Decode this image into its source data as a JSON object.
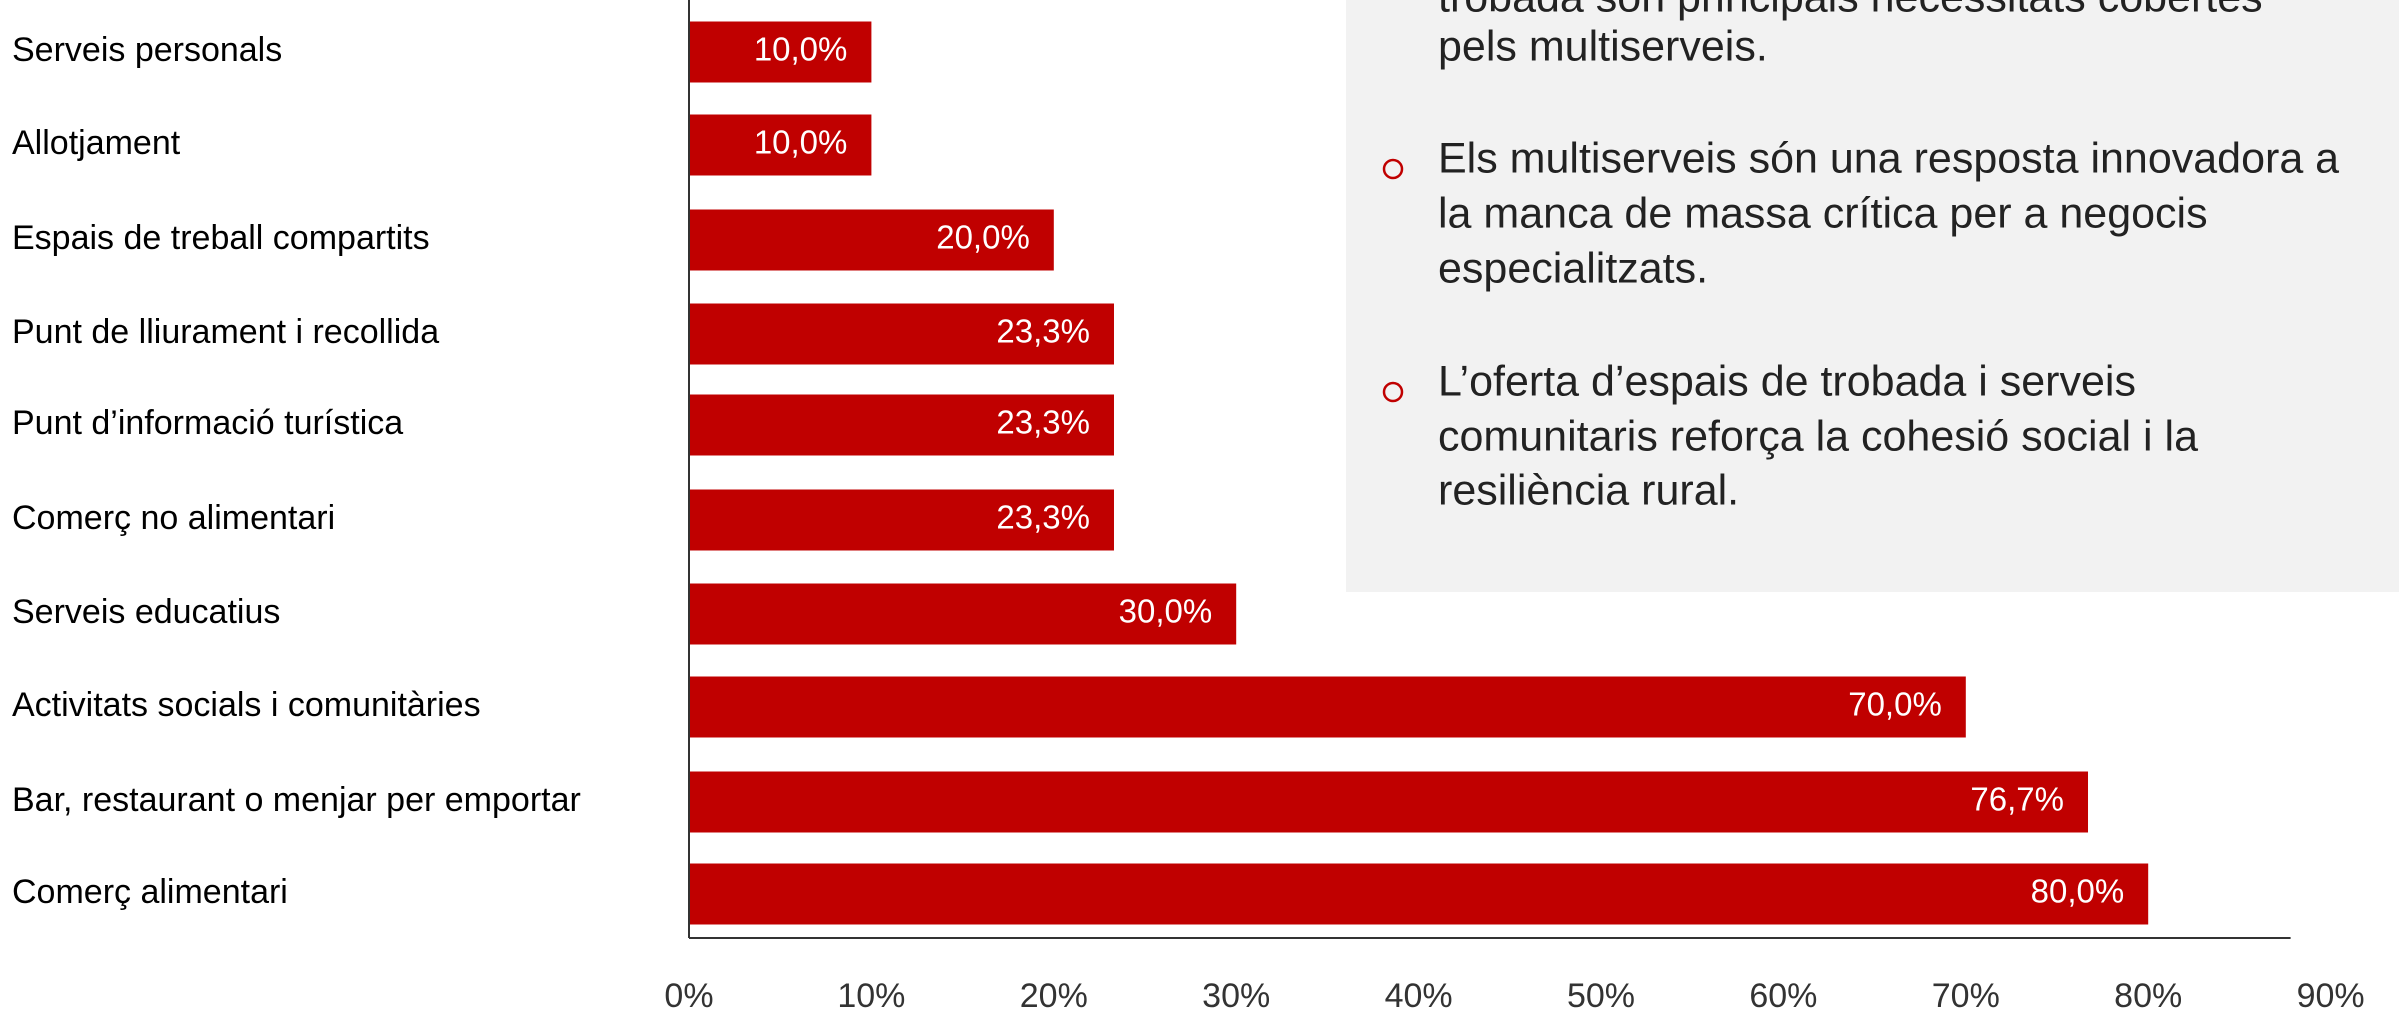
{
  "chart_data": {
    "type": "bar",
    "orientation": "horizontal",
    "categories": [
      "Serveis personals",
      "Allotjament",
      "Espais de treball compartits",
      "Punt de lliurament i recollida",
      "Punt d’informació turística",
      "Comerç no alimentari",
      "Serveis educatius",
      "Activitats socials i comunitàries",
      "Bar, restaurant o menjar per emportar",
      "Comerç alimentari"
    ],
    "values": [
      10.0,
      10.0,
      20.0,
      23.3,
      23.3,
      23.3,
      30.0,
      70.0,
      76.7,
      80.0
    ],
    "value_labels": [
      "10,0%",
      "10,0%",
      "20,0%",
      "23,3%",
      "23,3%",
      "23,3%",
      "30,0%",
      "70,0%",
      "76,7%",
      "80,0%"
    ],
    "color": "#c00000",
    "xlim": [
      0,
      90
    ],
    "xticks": [
      {
        "value": 0,
        "label": "0%"
      },
      {
        "value": 10,
        "label": "10%"
      },
      {
        "value": 20,
        "label": "20%"
      },
      {
        "value": 30,
        "label": "30%"
      },
      {
        "value": 40,
        "label": "40%"
      },
      {
        "value": 50,
        "label": "50%"
      },
      {
        "value": 60,
        "label": "60%"
      },
      {
        "value": 70,
        "label": "70%"
      },
      {
        "value": 80,
        "label": "80%"
      },
      {
        "value": 90,
        "label": "90%"
      }
    ]
  },
  "text_box": {
    "paragraphs": [
      [
        "trobada són principals necessitats cobertes",
        "pels multiserveis."
      ],
      [
        "Els multiserveis són una resposta innovadora a",
        "la manca de massa crítica per a negocis",
        "especialitzats."
      ],
      [
        "L’oferta d’espais de trobada i serveis",
        "comunitaris reforça la cohesió social i la",
        "resiliència rural."
      ]
    ]
  }
}
